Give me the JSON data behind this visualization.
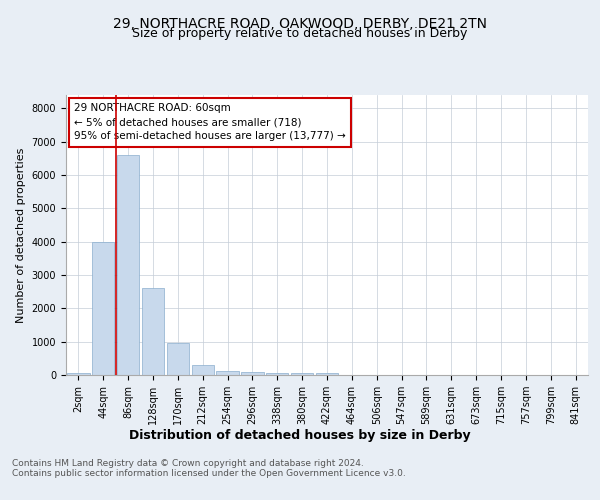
{
  "title1": "29, NORTHACRE ROAD, OAKWOOD, DERBY, DE21 2TN",
  "title2": "Size of property relative to detached houses in Derby",
  "xlabel": "Distribution of detached houses by size in Derby",
  "ylabel": "Number of detached properties",
  "footer1": "Contains HM Land Registry data © Crown copyright and database right 2024.",
  "footer2": "Contains public sector information licensed under the Open Government Licence v3.0.",
  "annotation_line1": "29 NORTHACRE ROAD: 60sqm",
  "annotation_line2": "← 5% of detached houses are smaller (718)",
  "annotation_line3": "95% of semi-detached houses are larger (13,777) →",
  "bar_labels": [
    "2sqm",
    "44sqm",
    "86sqm",
    "128sqm",
    "170sqm",
    "212sqm",
    "254sqm",
    "296sqm",
    "338sqm",
    "380sqm",
    "422sqm",
    "464sqm",
    "506sqm",
    "547sqm",
    "589sqm",
    "631sqm",
    "673sqm",
    "715sqm",
    "757sqm",
    "799sqm",
    "841sqm"
  ],
  "bar_values": [
    60,
    4000,
    6600,
    2600,
    950,
    300,
    120,
    80,
    50,
    70,
    60,
    0,
    0,
    0,
    0,
    0,
    0,
    0,
    0,
    0,
    0
  ],
  "bar_color": "#c8d9ec",
  "bar_edge_color": "#8aaece",
  "ylim": [
    0,
    8400
  ],
  "yticks": [
    0,
    1000,
    2000,
    3000,
    4000,
    5000,
    6000,
    7000,
    8000
  ],
  "bg_color": "#e8eef5",
  "plot_bg_color": "#ffffff",
  "annotation_box_color": "#ffffff",
  "annotation_box_edge": "#cc0000",
  "red_line_color": "#cc0000",
  "title1_fontsize": 10,
  "title2_fontsize": 9,
  "xlabel_fontsize": 9,
  "ylabel_fontsize": 8,
  "tick_fontsize": 7,
  "annotation_fontsize": 7.5,
  "footer_fontsize": 6.5
}
